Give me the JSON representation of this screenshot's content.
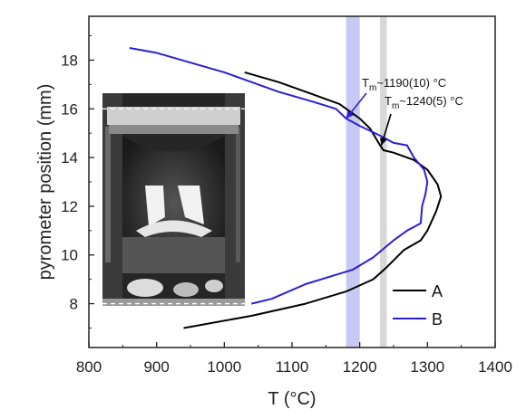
{
  "chart_data": {
    "type": "line",
    "xlabel": "T (°C)",
    "ylabel": "pyrometer position (mm)",
    "xlim": [
      800,
      1400
    ],
    "ylim": [
      6.2,
      19.8
    ],
    "x_ticks": [
      800,
      900,
      1000,
      1100,
      1200,
      1300,
      1400
    ],
    "y_ticks": [
      8,
      10,
      12,
      14,
      16,
      18
    ],
    "legend_position": "bottom-right",
    "bands": [
      {
        "x_min": 1180,
        "x_max": 1200,
        "color": "#c8c8f4"
      },
      {
        "x_min": 1230,
        "x_max": 1240,
        "color": "#d8d8d8"
      }
    ],
    "annotations": [
      {
        "base": "T",
        "sub": "m",
        "rest": "~1190(10) °C",
        "x": 1180,
        "y": 15.6
      },
      {
        "base": "T",
        "sub": "m",
        "rest": "~1240(5) °C",
        "x": 1232,
        "y": 14.5
      }
    ],
    "inset": {
      "dashed_lines_y": [
        16,
        8
      ]
    },
    "series": [
      {
        "name": "A",
        "color": "#000000",
        "points": [
          [
            1030,
            17.5
          ],
          [
            1080,
            17.1
          ],
          [
            1130,
            16.6
          ],
          [
            1170,
            16.2
          ],
          [
            1200,
            15.6
          ],
          [
            1215,
            15.2
          ],
          [
            1230,
            14.5
          ],
          [
            1235,
            14.3
          ],
          [
            1250,
            14.2
          ],
          [
            1280,
            13.9
          ],
          [
            1300,
            13.5
          ],
          [
            1315,
            12.9
          ],
          [
            1320,
            12.4
          ],
          [
            1313,
            11.8
          ],
          [
            1300,
            11.0
          ],
          [
            1290,
            10.6
          ],
          [
            1265,
            10.2
          ],
          [
            1240,
            9.5
          ],
          [
            1220,
            9.0
          ],
          [
            1180,
            8.5
          ],
          [
            1120,
            8.0
          ],
          [
            1040,
            7.5
          ],
          [
            940,
            7.0
          ]
        ]
      },
      {
        "name": "B",
        "color": "#2a1fd4",
        "points": [
          [
            860,
            18.5
          ],
          [
            900,
            18.3
          ],
          [
            1000,
            17.5
          ],
          [
            1080,
            16.7
          ],
          [
            1130,
            16.3
          ],
          [
            1165,
            16.0
          ],
          [
            1180,
            15.6
          ],
          [
            1200,
            15.3
          ],
          [
            1230,
            14.9
          ],
          [
            1250,
            14.6
          ],
          [
            1270,
            14.5
          ],
          [
            1280,
            14.0
          ],
          [
            1295,
            13.5
          ],
          [
            1300,
            13.0
          ],
          [
            1297,
            12.5
          ],
          [
            1292,
            12.0
          ],
          [
            1290,
            11.3
          ],
          [
            1270,
            11.0
          ],
          [
            1250,
            10.6
          ],
          [
            1220,
            9.9
          ],
          [
            1190,
            9.4
          ],
          [
            1120,
            8.8
          ],
          [
            1070,
            8.2
          ],
          [
            1040,
            8.0
          ]
        ]
      }
    ]
  }
}
